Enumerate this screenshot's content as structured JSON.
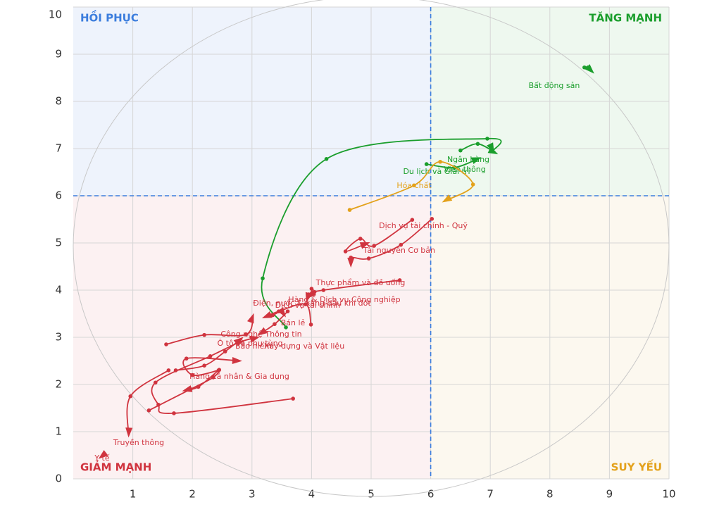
{
  "chart_data": {
    "type": "scatter",
    "xlim": [
      0,
      10
    ],
    "ylim": [
      0,
      10
    ],
    "xticks": [
      1,
      2,
      3,
      4,
      5,
      6,
      7,
      8,
      9,
      10
    ],
    "yticks": [
      0,
      1,
      2,
      3,
      4,
      5,
      6,
      7,
      8,
      9,
      10
    ],
    "grid": true,
    "reference_lines": {
      "x": 6,
      "y": 6,
      "color": "#3b7ddd"
    },
    "quadrants": {
      "top_left": {
        "label": "HỒI PHỤC",
        "color": "#3b7ddd",
        "fill": "#eef3fc"
      },
      "top_right": {
        "label": "TĂNG MẠNH",
        "color": "#1a9e2c",
        "fill": "#eef8ef"
      },
      "bottom_left": {
        "label": "GIẢM MẠNH",
        "color": "#d0343f",
        "fill": "#fcf1f2"
      },
      "bottom_right": {
        "label": "SUY YẾU",
        "color": "#e3a11a",
        "fill": "#fcf8ef"
      }
    },
    "series": [
      {
        "name": "Bất động sản",
        "color": "#1a9e2c",
        "x": [
          8.58,
          8.64,
          8.72
        ],
        "values": [
          8.72,
          8.72,
          8.62
        ]
      },
      {
        "name": "Ngân hàng",
        "color": "#1a9e2c",
        "x": [
          6.5,
          6.79,
          7.1
        ],
        "values": [
          6.96,
          7.1,
          6.9
        ]
      },
      {
        "name": "Viễn thông",
        "color": "#1a9e2c",
        "x": [
          5.93,
          6.4,
          6.82
        ],
        "values": [
          6.67,
          6.6,
          6.8
        ]
      },
      {
        "name": "Du lịch và Giải trí",
        "color": "#1a9e2c",
        "x": [
          3.57,
          3.18,
          4.25,
          6.95,
          7.05
        ],
        "values": [
          3.21,
          4.25,
          6.78,
          7.21,
          6.95
        ]
      },
      {
        "name": "Hóa chất",
        "color": "#e3a11a",
        "x": [
          4.64,
          5.72,
          6.16,
          6.71,
          6.22
        ],
        "values": [
          5.7,
          6.22,
          6.72,
          6.24,
          5.88
        ]
      },
      {
        "name": "Dịch vụ tài chính - Quỹ",
        "color": "#d0343f",
        "x": [
          6.02,
          5.5,
          4.96,
          4.66,
          4.66
        ],
        "values": [
          5.51,
          4.96,
          4.67,
          4.69,
          4.52
        ]
      },
      {
        "name": "Tài nguyên Cơ bản",
        "color": "#d0343f",
        "x": [
          5.69,
          5.05,
          4.82,
          4.57,
          4.95
        ],
        "values": [
          5.49,
          4.94,
          5.09,
          4.82,
          5.0
        ]
      },
      {
        "name": "Thực phẩm và đồ uống",
        "color": "#d0343f",
        "x": [
          5.48,
          4.2,
          3.95,
          3.92
        ],
        "values": [
          4.21,
          4.0,
          3.91,
          3.78
        ]
      },
      {
        "name": "Hàng & Dịch vụ Công nghiệp",
        "color": "#d0343f",
        "x": [
          4.0,
          4.05,
          3.94
        ],
        "values": [
          4.03,
          3.96,
          3.85
        ]
      },
      {
        "name": "Điện, nước & xăng dầu khí đốt",
        "color": "#d0343f",
        "x": [
          3.99,
          3.9,
          3.45,
          3.2
        ],
        "values": [
          3.27,
          3.7,
          3.55,
          3.42
        ]
      },
      {
        "name": "Dịch vụ tài chính",
        "color": "#d0343f",
        "x": [
          3.6,
          3.38,
          3.12
        ],
        "values": [
          3.55,
          3.28,
          3.06
        ]
      },
      {
        "name": "Bán lẻ",
        "color": "#d0343f",
        "x": [
          3.35,
          3.5,
          3.55
        ],
        "values": [
          3.47,
          3.55,
          3.46
        ]
      },
      {
        "name": "Công nghệ Thông tin",
        "color": "#d0343f",
        "x": [
          1.56,
          2.2,
          2.9,
          3.02
        ],
        "values": [
          2.85,
          3.05,
          3.06,
          3.47
        ]
      },
      {
        "name": "Ô tô và phụ tùng",
        "color": "#d0343f",
        "x": [
          1.72,
          2.2,
          2.55,
          2.83
        ],
        "values": [
          2.3,
          2.4,
          2.7,
          2.98
        ]
      },
      {
        "name": "Bảo hiểm",
        "color": "#d0343f",
        "x": [
          3.69,
          1.69,
          1.43,
          1.38,
          2.3,
          2.8,
          3.1
        ],
        "values": [
          1.7,
          1.39,
          1.57,
          2.04,
          2.6,
          2.9,
          3.0
        ]
      },
      {
        "name": "Xây dựng và Vật liệu",
        "color": "#d0343f",
        "x": [
          2.44,
          2.0,
          1.9,
          2.8
        ],
        "values": [
          2.3,
          2.2,
          2.55,
          2.5
        ]
      },
      {
        "name": "Hàng cá nhân & Gia dụng",
        "color": "#d0343f",
        "x": [
          1.27,
          1.97,
          2.35,
          2.45,
          2.1,
          1.86
        ],
        "values": [
          1.45,
          1.9,
          2.15,
          2.31,
          1.95,
          1.87
        ]
      },
      {
        "name": "Truyền thông",
        "color": "#d0343f",
        "x": [
          1.6,
          0.96,
          0.93
        ],
        "values": [
          2.3,
          1.75,
          0.92
        ]
      },
      {
        "name": "Y tế",
        "color": "#d0343f",
        "x": [
          0.5,
          0.45
        ],
        "values": [
          0.5,
          0.45
        ]
      }
    ]
  }
}
